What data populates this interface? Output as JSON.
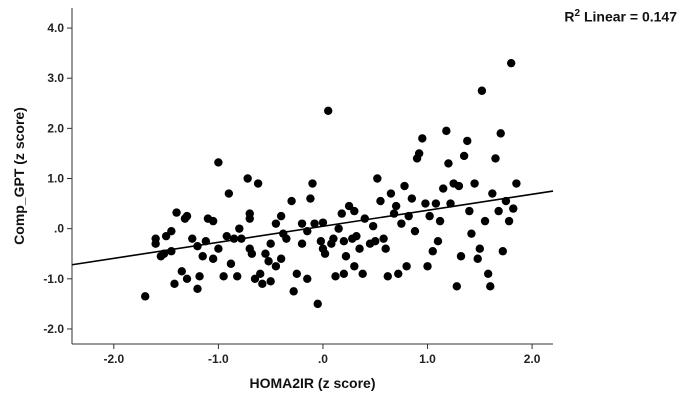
{
  "chart_data": {
    "type": "scatter",
    "title": "",
    "xlabel": "HOMA2IR (z score)",
    "ylabel": "Comp_GPT (z score)",
    "xlim": [
      -2.4,
      2.2
    ],
    "ylim": [
      -2.3,
      4.4
    ],
    "x_ticks": [
      {
        "value": -2.0,
        "label": "-2.0"
      },
      {
        "value": -1.0,
        "label": "-1.0"
      },
      {
        "value": 0.0,
        "label": ".0"
      },
      {
        "value": 1.0,
        "label": "1.0"
      },
      {
        "value": 2.0,
        "label": "2.0"
      }
    ],
    "y_ticks": [
      {
        "value": 4.0,
        "label": "4.0"
      },
      {
        "value": 3.0,
        "label": "3.0"
      },
      {
        "value": 2.0,
        "label": "2.0"
      },
      {
        "value": 1.0,
        "label": "1.0"
      },
      {
        "value": 0.0,
        "label": ".0"
      },
      {
        "value": -1.0,
        "label": "-1.0"
      },
      {
        "value": -2.0,
        "label": "-2.0"
      }
    ],
    "grid": false,
    "fit_line": {
      "label_prefix": "R",
      "label_sup": "2",
      "label_suffix": " Linear = 0.147",
      "x": [
        -2.4,
        2.2
      ],
      "y": [
        -0.72,
        0.75
      ]
    },
    "colors": {
      "points": "#000000",
      "line": "#000000",
      "axis": "#333333"
    },
    "points": [
      [
        -1.7,
        -1.35
      ],
      [
        -1.6,
        -0.3
      ],
      [
        -1.6,
        -0.2
      ],
      [
        -1.55,
        -0.55
      ],
      [
        -1.52,
        -0.5
      ],
      [
        -1.5,
        -0.15
      ],
      [
        -1.45,
        -0.05
      ],
      [
        -1.45,
        -0.45
      ],
      [
        -1.42,
        -1.1
      ],
      [
        -1.4,
        0.32
      ],
      [
        -1.35,
        -0.85
      ],
      [
        -1.32,
        0.2
      ],
      [
        -1.3,
        0.25
      ],
      [
        -1.3,
        -1.0
      ],
      [
        -1.25,
        -0.2
      ],
      [
        -1.2,
        -0.35
      ],
      [
        -1.2,
        -1.2
      ],
      [
        -1.18,
        -0.95
      ],
      [
        -1.15,
        -0.55
      ],
      [
        -1.12,
        -0.25
      ],
      [
        -1.1,
        0.2
      ],
      [
        -1.05,
        -0.6
      ],
      [
        -1.05,
        0.15
      ],
      [
        -1.0,
        1.32
      ],
      [
        -1.0,
        -0.4
      ],
      [
        -0.95,
        -0.95
      ],
      [
        -0.92,
        -0.15
      ],
      [
        -0.9,
        0.7
      ],
      [
        -0.88,
        -0.7
      ],
      [
        -0.85,
        -0.2
      ],
      [
        -0.82,
        -0.95
      ],
      [
        -0.8,
        0.0
      ],
      [
        -0.78,
        -0.2
      ],
      [
        -0.72,
        1.0
      ],
      [
        -0.7,
        0.3
      ],
      [
        -0.7,
        0.2
      ],
      [
        -0.7,
        -0.4
      ],
      [
        -0.68,
        -0.5
      ],
      [
        -0.65,
        -1.0
      ],
      [
        -0.62,
        0.9
      ],
      [
        -0.6,
        -0.9
      ],
      [
        -0.58,
        -1.1
      ],
      [
        -0.55,
        -0.5
      ],
      [
        -0.52,
        -0.65
      ],
      [
        -0.5,
        -1.05
      ],
      [
        -0.5,
        -0.3
      ],
      [
        -0.45,
        -0.75
      ],
      [
        -0.45,
        0.1
      ],
      [
        -0.4,
        0.25
      ],
      [
        -0.4,
        -0.6
      ],
      [
        -0.38,
        -0.1
      ],
      [
        -0.35,
        -0.2
      ],
      [
        -0.3,
        0.55
      ],
      [
        -0.28,
        -1.25
      ],
      [
        -0.25,
        -0.9
      ],
      [
        -0.2,
        0.1
      ],
      [
        -0.2,
        -0.3
      ],
      [
        -0.15,
        -1.0
      ],
      [
        -0.15,
        -0.05
      ],
      [
        -0.12,
        0.6
      ],
      [
        -0.1,
        0.9
      ],
      [
        -0.08,
        0.1
      ],
      [
        -0.05,
        -1.5
      ],
      [
        -0.02,
        -0.25
      ],
      [
        0.0,
        0.12
      ],
      [
        0.0,
        -0.4
      ],
      [
        0.02,
        -0.5
      ],
      [
        0.05,
        2.35
      ],
      [
        0.08,
        -0.3
      ],
      [
        0.1,
        -0.2
      ],
      [
        0.12,
        -0.95
      ],
      [
        0.15,
        0.0
      ],
      [
        0.18,
        0.3
      ],
      [
        0.2,
        -0.25
      ],
      [
        0.2,
        -0.9
      ],
      [
        0.22,
        -0.55
      ],
      [
        0.25,
        0.45
      ],
      [
        0.28,
        -0.2
      ],
      [
        0.3,
        0.35
      ],
      [
        0.3,
        -0.75
      ],
      [
        0.32,
        -0.15
      ],
      [
        0.35,
        -0.4
      ],
      [
        0.38,
        -0.9
      ],
      [
        0.4,
        0.2
      ],
      [
        0.45,
        -0.3
      ],
      [
        0.48,
        0.05
      ],
      [
        0.5,
        -0.25
      ],
      [
        0.52,
        1.0
      ],
      [
        0.55,
        0.55
      ],
      [
        0.58,
        -0.2
      ],
      [
        0.6,
        -0.4
      ],
      [
        0.62,
        -0.95
      ],
      [
        0.65,
        0.7
      ],
      [
        0.68,
        0.3
      ],
      [
        0.7,
        0.45
      ],
      [
        0.72,
        -0.9
      ],
      [
        0.75,
        0.1
      ],
      [
        0.78,
        0.85
      ],
      [
        0.8,
        -0.75
      ],
      [
        0.82,
        0.25
      ],
      [
        0.85,
        0.6
      ],
      [
        0.88,
        -0.05
      ],
      [
        0.9,
        1.4
      ],
      [
        0.92,
        1.5
      ],
      [
        0.95,
        1.8
      ],
      [
        0.98,
        0.5
      ],
      [
        1.0,
        -0.75
      ],
      [
        1.02,
        0.25
      ],
      [
        1.05,
        -0.45
      ],
      [
        1.08,
        0.5
      ],
      [
        1.1,
        -0.25
      ],
      [
        1.12,
        0.15
      ],
      [
        1.15,
        0.8
      ],
      [
        1.18,
        1.95
      ],
      [
        1.2,
        1.3
      ],
      [
        1.22,
        0.5
      ],
      [
        1.25,
        0.9
      ],
      [
        1.28,
        -1.15
      ],
      [
        1.3,
        0.85
      ],
      [
        1.32,
        -0.55
      ],
      [
        1.35,
        1.45
      ],
      [
        1.38,
        1.75
      ],
      [
        1.4,
        0.35
      ],
      [
        1.42,
        -0.1
      ],
      [
        1.45,
        0.9
      ],
      [
        1.48,
        -0.6
      ],
      [
        1.5,
        -0.4
      ],
      [
        1.52,
        2.75
      ],
      [
        1.55,
        0.15
      ],
      [
        1.58,
        -0.9
      ],
      [
        1.6,
        -1.15
      ],
      [
        1.62,
        0.7
      ],
      [
        1.65,
        1.4
      ],
      [
        1.68,
        0.35
      ],
      [
        1.7,
        1.9
      ],
      [
        1.72,
        -0.45
      ],
      [
        1.75,
        0.55
      ],
      [
        1.78,
        0.15
      ],
      [
        1.8,
        3.3
      ],
      [
        1.82,
        0.4
      ],
      [
        1.85,
        0.9
      ]
    ]
  }
}
